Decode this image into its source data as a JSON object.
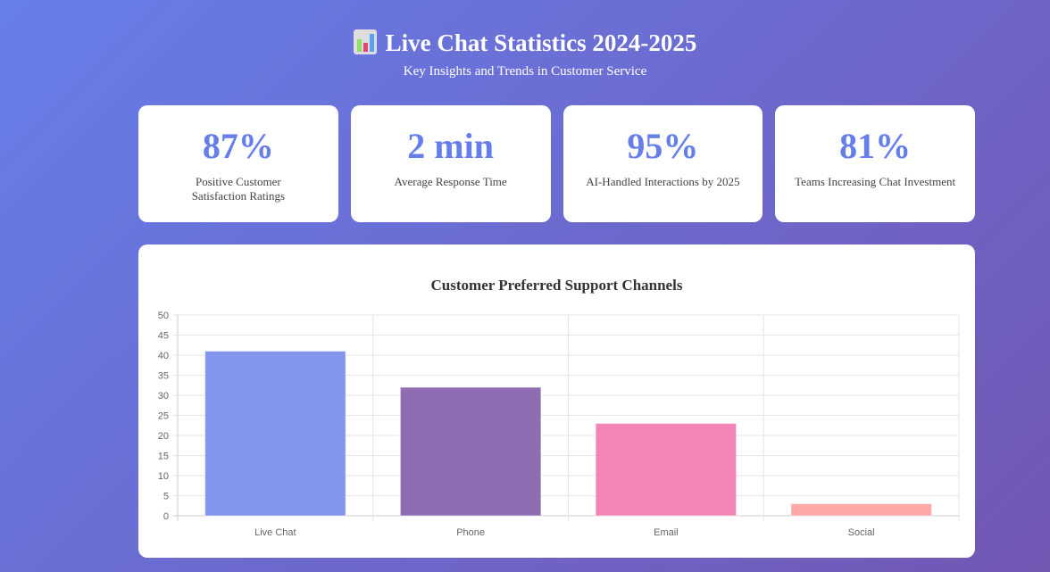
{
  "header": {
    "title": "Live Chat Statistics 2024-2025",
    "subtitle": "Key Insights and Trends in Customer Service",
    "icon": "bar-chart-icon"
  },
  "stats": [
    {
      "value": "87%",
      "label": "Positive Customer Satisfaction Ratings"
    },
    {
      "value": "2 min",
      "label": "Average Response Time"
    },
    {
      "value": "95%",
      "label": "AI-Handled Interactions by 2025"
    },
    {
      "value": "81%",
      "label": "Teams Increasing Chat Investment"
    }
  ],
  "colors": {
    "accent": "#667eea"
  },
  "chart_data": {
    "type": "bar",
    "title": "Customer Preferred Support Channels",
    "categories": [
      "Live Chat",
      "Phone",
      "Email",
      "Social"
    ],
    "values": [
      41,
      32,
      23,
      3
    ],
    "colors": [
      "#8294ec",
      "#8f6db2",
      "#f284b8",
      "#ffa8a8"
    ],
    "ylim": [
      0,
      50
    ],
    "yticks": [
      0,
      5,
      10,
      15,
      20,
      25,
      30,
      35,
      40,
      45,
      50
    ],
    "grid": true,
    "legend": "none"
  }
}
